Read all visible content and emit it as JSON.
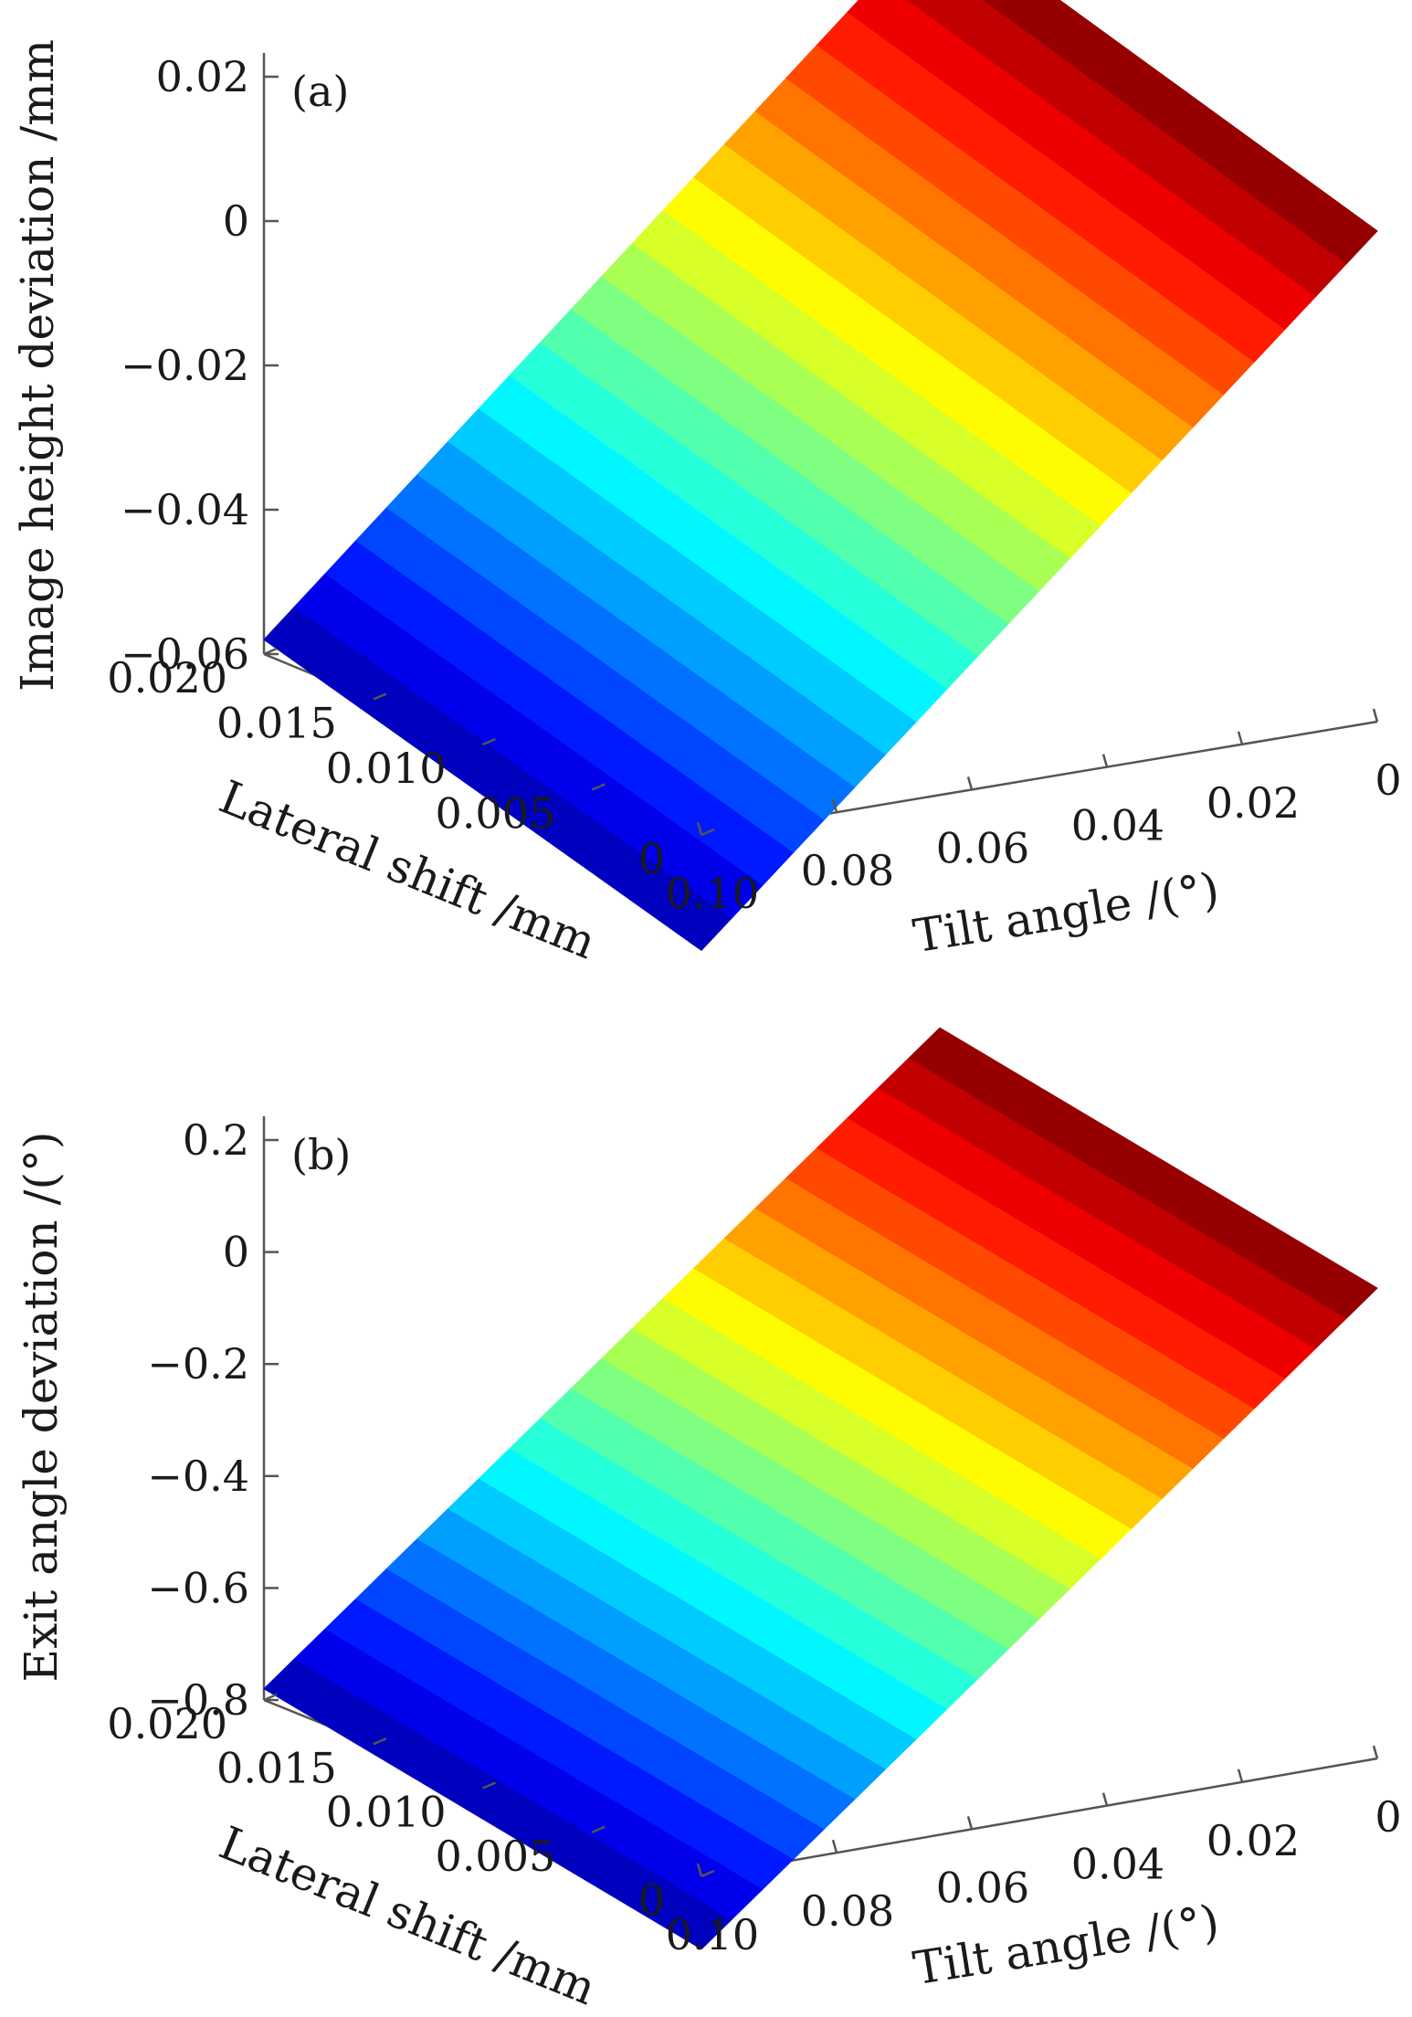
{
  "chart_data": [
    {
      "type": "surface3d",
      "panel_label": "(a)",
      "zlabel": "Image height deviation /mm",
      "xlabel": "Tilt angle /(°)",
      "ylabel": "Lateral shift /mm",
      "z_ticks": [
        "0.02",
        "0",
        "−0.02",
        "−0.04",
        "−0.06"
      ],
      "z_tick_values": [
        0.02,
        0,
        -0.02,
        -0.04,
        -0.06
      ],
      "zlim": [
        -0.06,
        0.025
      ],
      "x_ticks": [
        "0.10",
        "0.08",
        "0.06",
        "0.04",
        "0.02",
        "0"
      ],
      "x_tick_values": [
        0.1,
        0.08,
        0.06,
        0.04,
        0.02,
        0
      ],
      "xlim": [
        0,
        0.1
      ],
      "y_ticks": [
        "0.020",
        "0.015",
        "0.010",
        "0.005",
        "0"
      ],
      "y_tick_values": [
        0.02,
        0.015,
        0.01,
        0.005,
        0
      ],
      "ylim": [
        0,
        0.02
      ],
      "surface": {
        "corners": [
          {
            "tilt": 0.1,
            "shift": 0.02,
            "z": -0.058
          },
          {
            "tilt": 0.1,
            "shift": 0.0,
            "z": -0.076
          },
          {
            "tilt": 0.0,
            "shift": 0.0,
            "z": 0.008
          },
          {
            "tilt": 0.0,
            "shift": 0.02,
            "z": 0.027
          }
        ],
        "colormap": "jet",
        "bands": 22
      }
    },
    {
      "type": "surface3d",
      "panel_label": "(b)",
      "zlabel": "Exit angle deviation /(°)",
      "xlabel": "Tilt angle /(°)",
      "ylabel": "Lateral shift /mm",
      "z_ticks": [
        "0.2",
        "0",
        "−0.2",
        "−0.4",
        "−0.6",
        "−0.8"
      ],
      "z_tick_values": [
        0.2,
        0,
        -0.2,
        -0.4,
        -0.6,
        -0.8
      ],
      "zlim": [
        -0.8,
        0.2
      ],
      "x_ticks": [
        "0.10",
        "0.08",
        "0.06",
        "0.04",
        "0.02",
        "0"
      ],
      "x_tick_values": [
        0.1,
        0.08,
        0.06,
        0.04,
        0.02,
        0
      ],
      "xlim": [
        0,
        0.1
      ],
      "y_ticks": [
        "0.020",
        "0.015",
        "0.010",
        "0.005",
        "0"
      ],
      "y_tick_values": [
        0.02,
        0.015,
        0.01,
        0.005,
        0
      ],
      "ylim": [
        0,
        0.02
      ],
      "surface": {
        "corners": [
          {
            "tilt": 0.1,
            "shift": 0.02,
            "z": -0.78
          },
          {
            "tilt": 0.1,
            "shift": 0.0,
            "z": -0.93
          },
          {
            "tilt": 0.0,
            "shift": 0.0,
            "z": 0.04
          },
          {
            "tilt": 0.0,
            "shift": 0.02,
            "z": 0.19
          }
        ],
        "colormap": "jet",
        "bands": 22
      }
    }
  ]
}
